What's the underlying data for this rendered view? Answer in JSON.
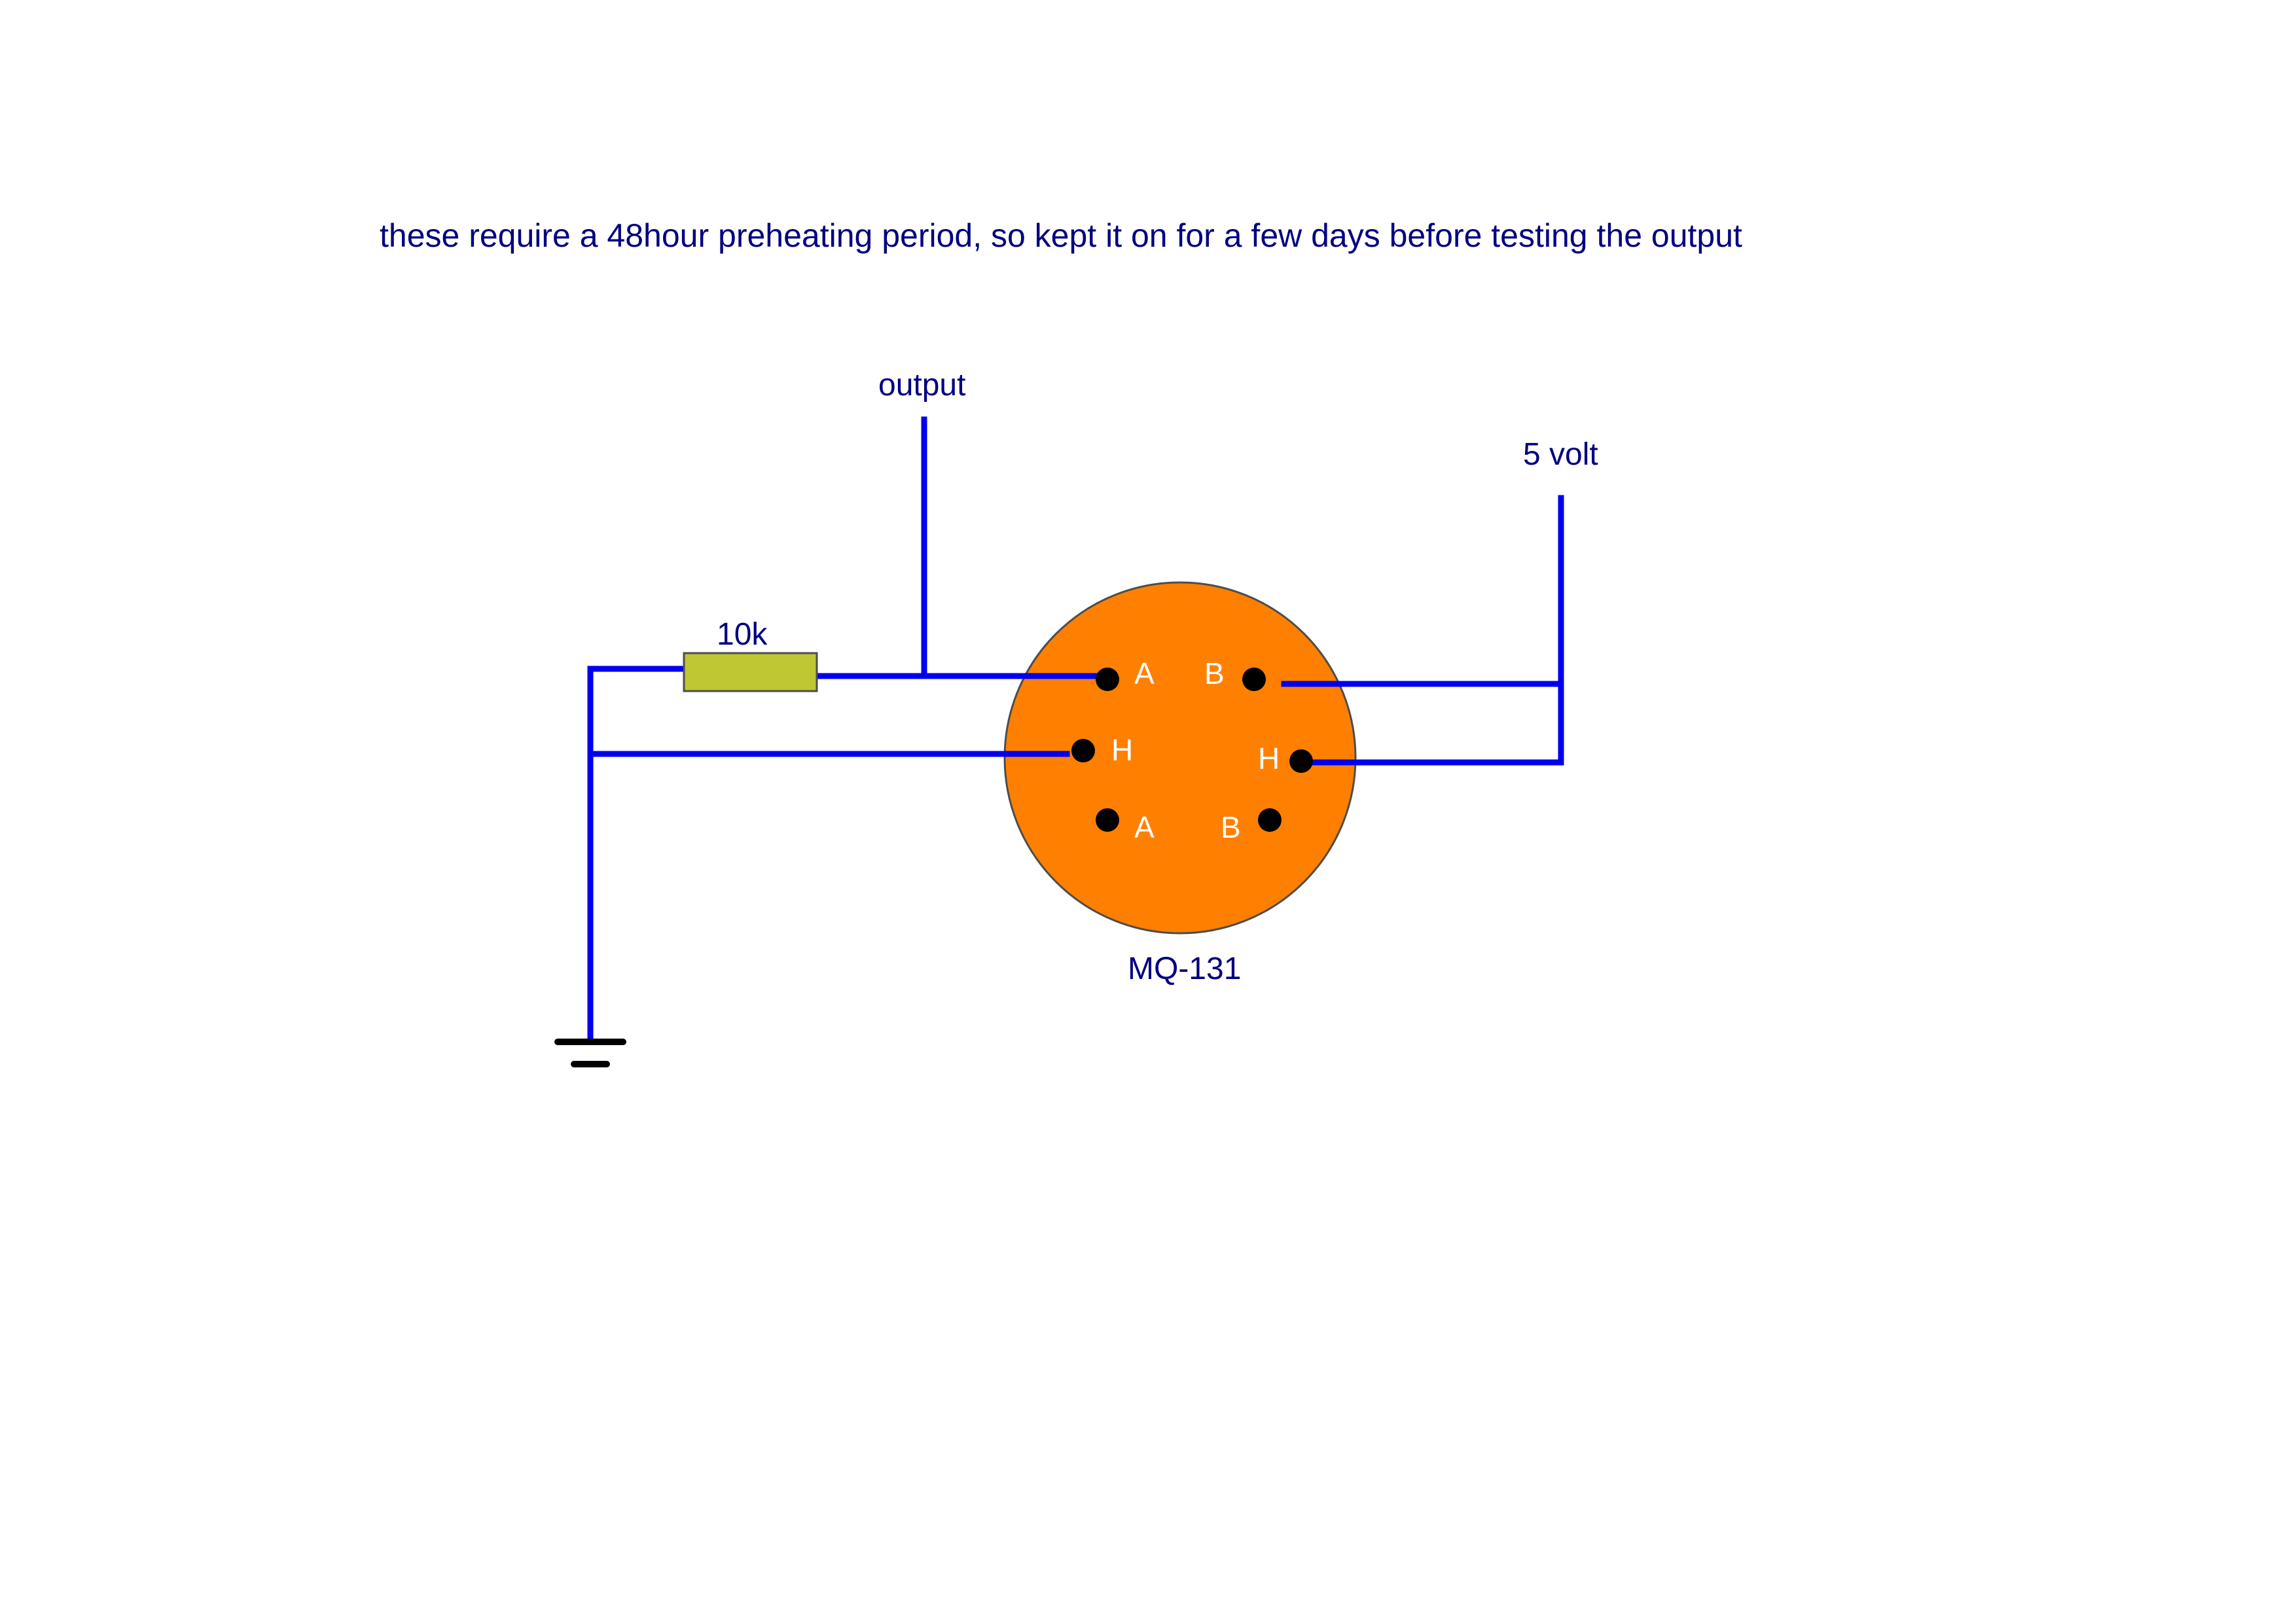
{
  "note": "these require a 48hour preheating period, so kept it on for a few days before testing the output",
  "labels": {
    "output": "output",
    "supply": "5 volt",
    "resistor": "10k",
    "sensor": "MQ-131"
  },
  "pins": {
    "a_top": "A",
    "b_top": "B",
    "h_left": "H",
    "h_right": "H",
    "a_bottom": "A",
    "b_bottom": "B"
  },
  "colors": {
    "wire": "#0000ee",
    "sensor_body": "#ff8000",
    "resistor_body": "#bfc732",
    "text": "#000080",
    "pin_label": "#ffffff"
  }
}
